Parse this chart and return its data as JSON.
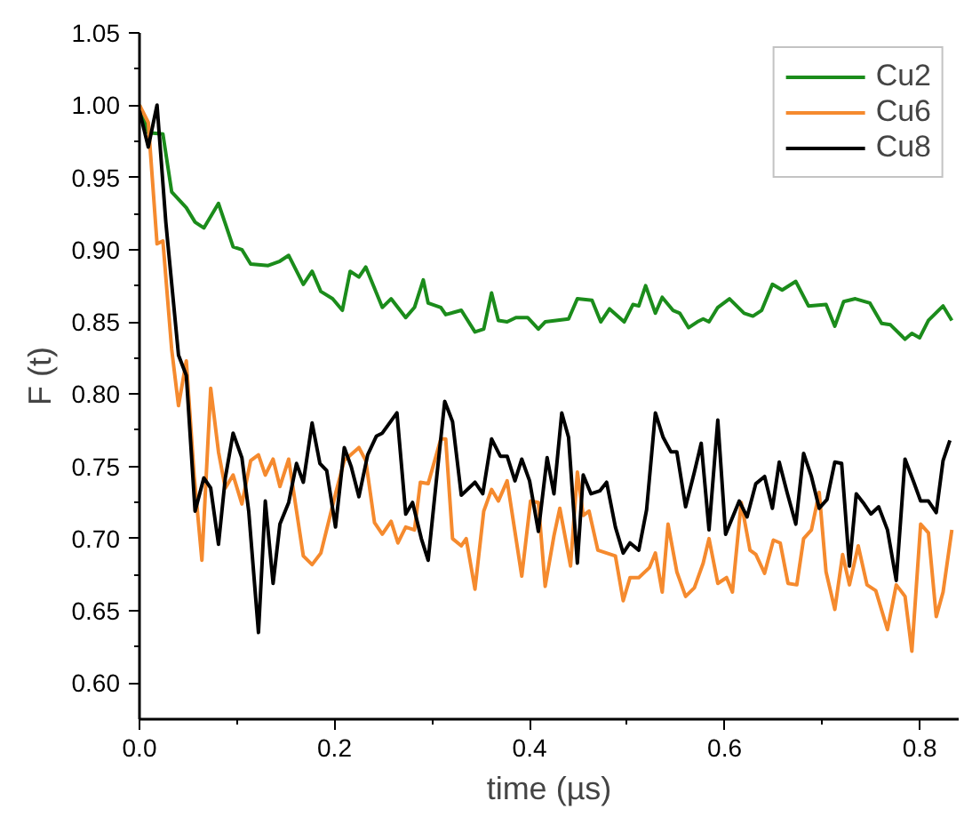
{
  "chart_data": {
    "type": "line",
    "xlabel": "time (µs)",
    "ylabel": "F (t)",
    "xlim": [
      0,
      0.84
    ],
    "ylim": [
      0.575,
      1.05
    ],
    "xticks": [
      {
        "value": 0,
        "label": "0.0"
      },
      0.2,
      0.4,
      0.6,
      0.8
    ],
    "yticks": [
      {
        "value": 0.6,
        "label": "0.60"
      },
      {
        "value": 0.65,
        "label": "0.65"
      },
      {
        "value": 0.7,
        "label": "0.70"
      },
      {
        "value": 0.75,
        "label": "0.75"
      },
      {
        "value": 0.8,
        "label": "0.80"
      },
      {
        "value": 0.85,
        "label": "0.85"
      },
      {
        "value": 0.9,
        "label": "0.90"
      },
      {
        "value": 0.95,
        "label": "0.95"
      },
      {
        "value": 1.0,
        "label": "1.00"
      },
      {
        "value": 1.05,
        "label": "1.05"
      }
    ],
    "grid": false,
    "legend": "top right",
    "line_style": "solid",
    "marker": "none",
    "series": [
      {
        "name": "Cu2",
        "color": "#1b8c1b",
        "x": [
          0,
          0.009,
          0.024,
          0.033,
          0.048,
          0.057,
          0.066,
          0.081,
          0.096,
          0.105,
          0.114,
          0.132,
          0.144,
          0.153,
          0.168,
          0.177,
          0.186,
          0.198,
          0.208,
          0.216,
          0.225,
          0.232,
          0.249,
          0.258,
          0.273,
          0.282,
          0.291,
          0.296,
          0.309,
          0.314,
          0.33,
          0.344,
          0.353,
          0.361,
          0.368,
          0.377,
          0.386,
          0.398,
          0.409,
          0.416,
          0.44,
          0.449,
          0.464,
          0.473,
          0.482,
          0.497,
          0.506,
          0.512,
          0.519,
          0.529,
          0.536,
          0.547,
          0.554,
          0.563,
          0.572,
          0.578,
          0.584,
          0.593,
          0.605,
          0.62,
          0.629,
          0.638,
          0.649,
          0.659,
          0.673,
          0.686,
          0.704,
          0.713,
          0.722,
          0.734,
          0.749,
          0.761,
          0.77,
          0.785,
          0.792,
          0.8,
          0.809,
          0.824,
          0.833
        ],
        "values": [
          1.0,
          0.981,
          0.98,
          0.94,
          0.929,
          0.919,
          0.915,
          0.932,
          0.902,
          0.9,
          0.89,
          0.889,
          0.892,
          0.896,
          0.876,
          0.885,
          0.871,
          0.866,
          0.858,
          0.885,
          0.881,
          0.888,
          0.86,
          0.866,
          0.853,
          0.86,
          0.879,
          0.863,
          0.86,
          0.855,
          0.858,
          0.843,
          0.845,
          0.87,
          0.851,
          0.85,
          0.853,
          0.853,
          0.845,
          0.85,
          0.852,
          0.866,
          0.865,
          0.85,
          0.859,
          0.85,
          0.862,
          0.861,
          0.875,
          0.856,
          0.867,
          0.858,
          0.856,
          0.846,
          0.85,
          0.852,
          0.85,
          0.86,
          0.866,
          0.856,
          0.854,
          0.858,
          0.876,
          0.872,
          0.878,
          0.861,
          0.862,
          0.847,
          0.864,
          0.866,
          0.863,
          0.849,
          0.848,
          0.838,
          0.842,
          0.839,
          0.851,
          0.861,
          0.851
        ]
      },
      {
        "name": "Cu6",
        "color": "#f58a2e",
        "x": [
          0,
          0.009,
          0.018,
          0.024,
          0.033,
          0.04,
          0.048,
          0.056,
          0.064,
          0.073,
          0.081,
          0.088,
          0.096,
          0.105,
          0.114,
          0.122,
          0.129,
          0.137,
          0.144,
          0.153,
          0.168,
          0.177,
          0.186,
          0.201,
          0.21,
          0.225,
          0.232,
          0.241,
          0.249,
          0.258,
          0.265,
          0.273,
          0.282,
          0.288,
          0.296,
          0.309,
          0.314,
          0.321,
          0.33,
          0.335,
          0.344,
          0.353,
          0.361,
          0.368,
          0.377,
          0.392,
          0.401,
          0.409,
          0.416,
          0.425,
          0.431,
          0.442,
          0.449,
          0.455,
          0.461,
          0.47,
          0.479,
          0.488,
          0.496,
          0.503,
          0.512,
          0.523,
          0.529,
          0.536,
          0.542,
          0.551,
          0.56,
          0.569,
          0.578,
          0.584,
          0.593,
          0.602,
          0.608,
          0.617,
          0.626,
          0.632,
          0.641,
          0.65,
          0.657,
          0.665,
          0.674,
          0.681,
          0.689,
          0.697,
          0.704,
          0.713,
          0.721,
          0.728,
          0.737,
          0.746,
          0.755,
          0.767,
          0.776,
          0.785,
          0.792,
          0.801,
          0.809,
          0.817,
          0.824,
          0.833
        ],
        "values": [
          1.0,
          0.988,
          0.904,
          0.906,
          0.831,
          0.792,
          0.823,
          0.744,
          0.685,
          0.804,
          0.76,
          0.735,
          0.744,
          0.724,
          0.754,
          0.758,
          0.744,
          0.755,
          0.736,
          0.755,
          0.688,
          0.682,
          0.69,
          0.731,
          0.754,
          0.763,
          0.754,
          0.711,
          0.703,
          0.712,
          0.697,
          0.708,
          0.706,
          0.739,
          0.738,
          0.769,
          0.769,
          0.7,
          0.695,
          0.7,
          0.665,
          0.719,
          0.734,
          0.726,
          0.74,
          0.674,
          0.726,
          0.725,
          0.667,
          0.702,
          0.721,
          0.681,
          0.746,
          0.716,
          0.719,
          0.692,
          0.69,
          0.688,
          0.657,
          0.673,
          0.673,
          0.68,
          0.69,
          0.663,
          0.71,
          0.677,
          0.66,
          0.666,
          0.683,
          0.7,
          0.669,
          0.673,
          0.663,
          0.725,
          0.692,
          0.689,
          0.676,
          0.699,
          0.697,
          0.669,
          0.668,
          0.7,
          0.706,
          0.732,
          0.677,
          0.651,
          0.689,
          0.668,
          0.695,
          0.668,
          0.664,
          0.637,
          0.668,
          0.66,
          0.622,
          0.71,
          0.704,
          0.646,
          0.663,
          0.706
        ]
      },
      {
        "name": "Cu8",
        "color": "#000000",
        "x": [
          0,
          0.009,
          0.018,
          0.027,
          0.04,
          0.048,
          0.057,
          0.066,
          0.073,
          0.081,
          0.088,
          0.096,
          0.105,
          0.112,
          0.122,
          0.129,
          0.137,
          0.144,
          0.153,
          0.161,
          0.168,
          0.177,
          0.185,
          0.192,
          0.201,
          0.21,
          0.217,
          0.225,
          0.234,
          0.243,
          0.249,
          0.264,
          0.273,
          0.28,
          0.289,
          0.296,
          0.305,
          0.313,
          0.321,
          0.33,
          0.344,
          0.352,
          0.361,
          0.37,
          0.377,
          0.385,
          0.392,
          0.4,
          0.409,
          0.418,
          0.425,
          0.433,
          0.44,
          0.449,
          0.455,
          0.463,
          0.472,
          0.479,
          0.488,
          0.496,
          0.503,
          0.512,
          0.52,
          0.529,
          0.537,
          0.545,
          0.551,
          0.56,
          0.569,
          0.576,
          0.584,
          0.593,
          0.601,
          0.615,
          0.623,
          0.632,
          0.641,
          0.649,
          0.656,
          0.664,
          0.673,
          0.681,
          0.689,
          0.697,
          0.705,
          0.713,
          0.72,
          0.728,
          0.735,
          0.743,
          0.75,
          0.758,
          0.767,
          0.776,
          0.785,
          0.794,
          0.801,
          0.809,
          0.817,
          0.824,
          0.831
        ],
        "values": [
          0.996,
          0.971,
          1.0,
          0.919,
          0.827,
          0.813,
          0.719,
          0.742,
          0.735,
          0.696,
          0.742,
          0.773,
          0.756,
          0.719,
          0.635,
          0.726,
          0.669,
          0.71,
          0.725,
          0.752,
          0.739,
          0.78,
          0.752,
          0.747,
          0.708,
          0.763,
          0.75,
          0.729,
          0.758,
          0.771,
          0.773,
          0.787,
          0.717,
          0.725,
          0.7,
          0.685,
          0.744,
          0.795,
          0.781,
          0.73,
          0.739,
          0.731,
          0.769,
          0.757,
          0.757,
          0.74,
          0.755,
          0.74,
          0.705,
          0.756,
          0.731,
          0.787,
          0.77,
          0.683,
          0.744,
          0.731,
          0.733,
          0.739,
          0.708,
          0.69,
          0.697,
          0.692,
          0.72,
          0.787,
          0.77,
          0.76,
          0.76,
          0.722,
          0.746,
          0.766,
          0.706,
          0.782,
          0.703,
          0.726,
          0.715,
          0.738,
          0.743,
          0.721,
          0.753,
          0.732,
          0.71,
          0.759,
          0.743,
          0.721,
          0.727,
          0.753,
          0.752,
          0.681,
          0.731,
          0.724,
          0.717,
          0.722,
          0.706,
          0.671,
          0.755,
          0.739,
          0.726,
          0.726,
          0.718,
          0.754,
          0.768
        ]
      }
    ]
  }
}
